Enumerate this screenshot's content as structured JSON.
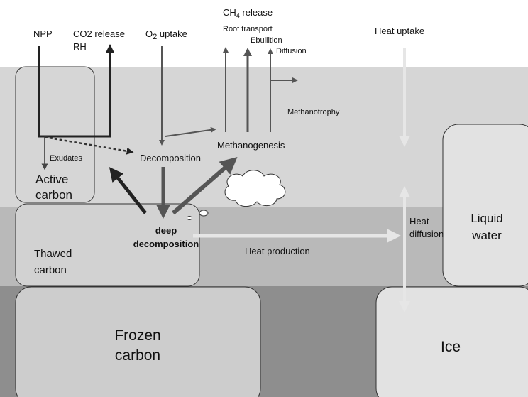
{
  "labels": {
    "npp": "NPP",
    "co2_release": "CO2 release",
    "rh": "RH",
    "o2_uptake": {
      "main": "O",
      "sub": "2",
      "rest": " uptake"
    },
    "ch4_release": {
      "main": "CH",
      "sub": "4",
      "rest": " release"
    },
    "root_transport": "Root transport",
    "ebullition": "Ebullition",
    "diffusion": "Diffusion",
    "heat_uptake": "Heat uptake",
    "methanotrophy": "Methanotrophy",
    "exudates": "Exudates",
    "decomposition": "Decomposition",
    "methanogenesis": "Methanogenesis",
    "active_carbon": [
      "Active",
      "carbon"
    ],
    "deep_decomposition": [
      "deep",
      "decomposition"
    ],
    "thawed_carbon": [
      "Thawed",
      "carbon"
    ],
    "heat_production": "Heat production",
    "heat_diffusion": [
      "Heat",
      "diffusion"
    ],
    "liquid_water": [
      "Liquid",
      "water"
    ],
    "frozen_carbon": [
      "Frozen",
      "carbon"
    ],
    "ice": "Ice"
  }
}
